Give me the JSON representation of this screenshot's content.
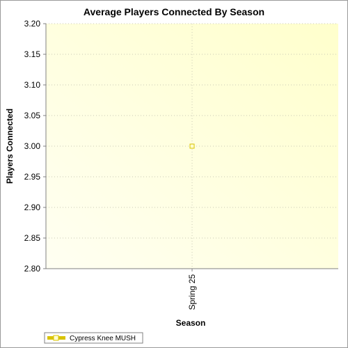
{
  "chart_data": {
    "type": "line",
    "title": "Average Players Connected By Season",
    "xlabel": "Season",
    "ylabel": "Players Connected",
    "categories": [
      "Spring 25"
    ],
    "series": [
      {
        "name": "Cypress Knee MUSH",
        "values": [
          3.0
        ]
      }
    ],
    "ylim": [
      2.8,
      3.2
    ],
    "yticks": [
      "2.80",
      "2.85",
      "2.90",
      "2.95",
      "3.00",
      "3.05",
      "3.10",
      "3.15",
      "3.20"
    ],
    "grid": true,
    "legend": "bottom-left",
    "colors": {
      "series": "#d9c300",
      "plot_bg_from": "#fffff2",
      "plot_bg_to": "#ffffcc",
      "grid": "#c8c8b4"
    }
  }
}
